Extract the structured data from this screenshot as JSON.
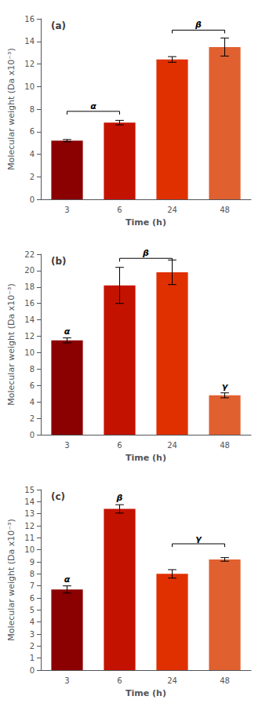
{
  "chart_data": [
    {
      "type": "bar",
      "title": "(a)",
      "categories": [
        "3",
        "6",
        "24",
        "48"
      ],
      "values": [
        5.2,
        6.8,
        12.4,
        13.5
      ],
      "errors": [
        0.1,
        0.2,
        0.25,
        0.8
      ],
      "colors": [
        "#8B0000",
        "#C41200",
        "#E03000",
        "#E06030"
      ],
      "ylim": [
        0,
        16
      ],
      "yticks": [
        0,
        2,
        4,
        6,
        8,
        10,
        12,
        14,
        16
      ],
      "ylabel": "Molecular weight (Da x10⁻³)",
      "xlabel": "Time (h)",
      "grid": false,
      "brackets": [
        {
          "label": "α",
          "from": "3",
          "to": "6",
          "y": 7.8
        },
        {
          "label": "β",
          "from": "24",
          "to": "48",
          "y": 15.0
        }
      ],
      "markers": []
    },
    {
      "type": "bar",
      "title": "(b)",
      "categories": [
        "3",
        "6",
        "24",
        "48"
      ],
      "values": [
        11.5,
        18.2,
        19.8,
        4.8
      ],
      "errors": [
        0.3,
        2.2,
        1.5,
        0.3
      ],
      "colors": [
        "#8B0000",
        "#C41200",
        "#E03000",
        "#E06030"
      ],
      "ylim": [
        0,
        22
      ],
      "yticks": [
        0,
        2,
        4,
        6,
        8,
        10,
        12,
        14,
        16,
        18,
        20,
        22
      ],
      "ylabel": "Molecular weight (Da x10⁻³)",
      "xlabel": "Time (h)",
      "grid": false,
      "brackets": [
        {
          "label": "β",
          "from": "6",
          "to": "24",
          "y": 21.5
        }
      ],
      "markers": [
        {
          "label": "α",
          "category": "3"
        },
        {
          "label": "γ",
          "category": "48"
        }
      ]
    },
    {
      "type": "bar",
      "title": "(c)",
      "categories": [
        "3",
        "6",
        "24",
        "48"
      ],
      "values": [
        6.7,
        13.4,
        8.0,
        9.2
      ],
      "errors": [
        0.3,
        0.35,
        0.35,
        0.15
      ],
      "colors": [
        "#8B0000",
        "#C41200",
        "#E03000",
        "#E06030"
      ],
      "ylim": [
        0,
        15
      ],
      "yticks": [
        0,
        1,
        2,
        3,
        4,
        5,
        6,
        7,
        8,
        9,
        10,
        11,
        12,
        13,
        14,
        15
      ],
      "ylabel": "Molecular weight (Da x10⁻³)",
      "xlabel": "Time (h)",
      "grid": false,
      "brackets": [
        {
          "label": "γ",
          "from": "24",
          "to": "48",
          "y": 10.5
        }
      ],
      "markers": [
        {
          "label": "α",
          "category": "3"
        },
        {
          "label": "β",
          "category": "6"
        }
      ]
    }
  ]
}
